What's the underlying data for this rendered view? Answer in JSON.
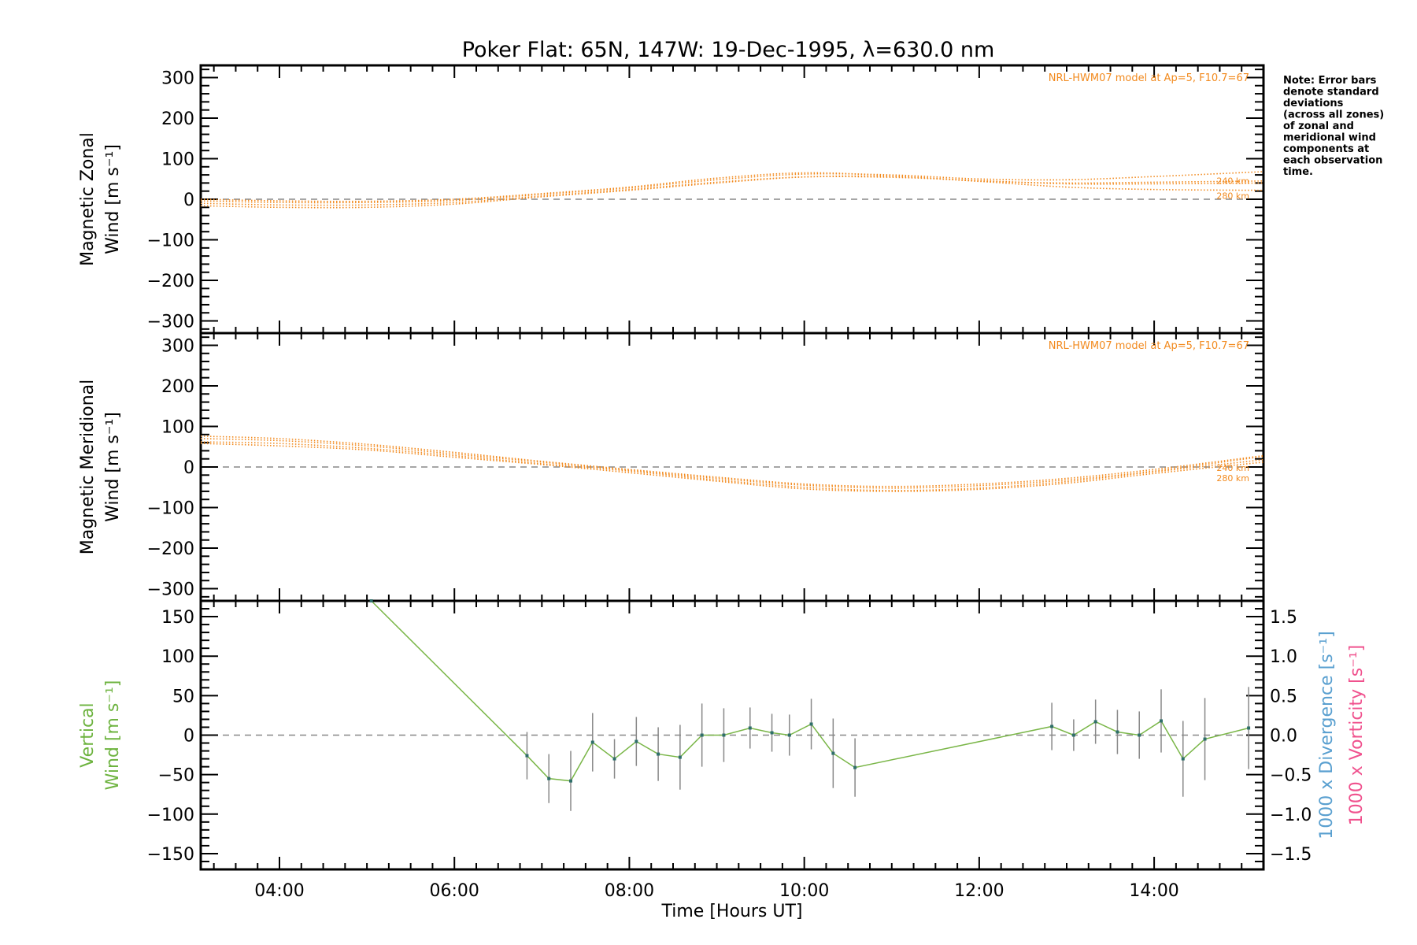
{
  "title": "Poker Flat: 65N, 147W: 19-Dec-1995, λ=630.0 nm",
  "note_lines": [
    "Note: Error bars",
    "denote standard",
    "deviations",
    "(across all zones)",
    "of zonal and",
    "meridional wind",
    "components at",
    "each observation",
    "time."
  ],
  "colors": {
    "model": "#f28a1e",
    "vertical": "#6db33f",
    "divergence": "#5aa0d0",
    "vorticity": "#f0528e",
    "points": "#2f6f6a",
    "errorbars": "#888888"
  },
  "chart_data": [
    {
      "type": "line",
      "panel": "zonal",
      "ylabel_line1": "Magnetic Zonal",
      "ylabel_line2": "Wind [m s⁻¹]",
      "ylim": [
        -330,
        330
      ],
      "xlim": [
        3.1,
        15.25
      ],
      "yticks": [
        -300,
        -200,
        -100,
        0,
        100,
        200,
        300
      ],
      "model_label": "NRL-HWM07 model at Ap=5, F10.7=67",
      "series": [
        {
          "name": "240 km",
          "x": [
            3.1,
            4,
            5,
            6,
            7,
            8,
            9,
            10,
            11,
            12,
            13,
            14,
            15.25
          ],
          "values": [
            -10,
            -14,
            -14,
            -8,
            8,
            24,
            42,
            55,
            54,
            46,
            38,
            38,
            40
          ]
        },
        {
          "name": "280 km",
          "x": [
            3.1,
            4,
            5,
            6,
            7,
            8,
            9,
            10,
            11,
            12,
            13,
            14,
            15.25
          ],
          "values": [
            -16,
            -20,
            -20,
            -12,
            6,
            22,
            40,
            55,
            56,
            44,
            30,
            24,
            22
          ]
        },
        {
          "name": "",
          "x": [
            3.1,
            4,
            5,
            6,
            7,
            8,
            9,
            10,
            11,
            12,
            13,
            14,
            15.25
          ],
          "values": [
            -4,
            -8,
            -8,
            -3,
            12,
            28,
            48,
            62,
            60,
            50,
            48,
            56,
            68
          ]
        },
        {
          "name": "",
          "x": [
            3.1,
            4,
            5,
            6,
            7,
            8,
            9,
            10,
            11,
            12,
            13,
            14,
            15.25
          ],
          "values": [
            0,
            -4,
            -5,
            0,
            14,
            30,
            52,
            65,
            58,
            45,
            40,
            42,
            45
          ]
        }
      ]
    },
    {
      "type": "line",
      "panel": "meridional",
      "ylabel_line1": "Magnetic Meridional",
      "ylabel_line2": "Wind [m s⁻¹]",
      "ylim": [
        -330,
        330
      ],
      "xlim": [
        3.1,
        15.25
      ],
      "yticks": [
        -300,
        -200,
        -100,
        0,
        100,
        200,
        300
      ],
      "model_label": "NRL-HWM07 model at Ap=5, F10.7=67",
      "series": [
        {
          "name": "240 km",
          "x": [
            3.1,
            4,
            5,
            6,
            7,
            8,
            9,
            10,
            11,
            12,
            13,
            14,
            15.25
          ],
          "values": [
            70,
            65,
            52,
            32,
            12,
            -8,
            -28,
            -45,
            -52,
            -46,
            -32,
            -10,
            26
          ]
        },
        {
          "name": "280 km",
          "x": [
            3.1,
            4,
            5,
            6,
            7,
            8,
            9,
            10,
            11,
            12,
            13,
            14,
            15.25
          ],
          "values": [
            62,
            58,
            46,
            28,
            8,
            -10,
            -32,
            -50,
            -58,
            -52,
            -36,
            -12,
            18
          ]
        },
        {
          "name": "",
          "x": [
            3.1,
            4,
            5,
            6,
            7,
            8,
            9,
            10,
            11,
            12,
            13,
            14,
            15.25
          ],
          "values": [
            76,
            70,
            56,
            36,
            14,
            -6,
            -25,
            -42,
            -48,
            -42,
            -28,
            -6,
            28
          ]
        },
        {
          "name": "",
          "x": [
            3.1,
            4,
            5,
            6,
            7,
            8,
            9,
            10,
            11,
            12,
            13,
            14,
            15.25
          ],
          "values": [
            58,
            52,
            42,
            24,
            6,
            -14,
            -35,
            -54,
            -60,
            -55,
            -40,
            -16,
            12
          ]
        }
      ]
    },
    {
      "type": "line",
      "panel": "vertical",
      "ylabel_line1": "Vertical",
      "ylabel_line2": "Wind [m s⁻¹]",
      "ylabel_right_div": "1000 x Divergence [s⁻¹]",
      "ylabel_right_vort": "1000 x Vorticity [s⁻¹]",
      "xlabel": "Time [Hours UT]",
      "xticks": [
        "04:00",
        "06:00",
        "08:00",
        "10:00",
        "12:00",
        "14:00"
      ],
      "xtick_values": [
        4,
        6,
        8,
        10,
        12,
        14
      ],
      "ylim": [
        -170,
        170
      ],
      "xlim": [
        3.1,
        15.25
      ],
      "yticks": [
        -150,
        -100,
        -50,
        0,
        50,
        100,
        150
      ],
      "y2lim": [
        -1.7,
        1.7
      ],
      "y2ticks": [
        -1.5,
        -1.0,
        -0.5,
        0.0,
        0.5,
        1.0,
        1.5
      ],
      "y2ticklabels": [
        "-1.5",
        "-1.0",
        "-0.5",
        "0.0",
        "0.5",
        "1.0",
        "1.5"
      ],
      "series": [
        {
          "name": "",
          "x": [
            5.05,
            6.83,
            7.08,
            7.33,
            7.58,
            7.83,
            8.08,
            8.33,
            8.58,
            8.83,
            9.08,
            9.38,
            9.63,
            9.83,
            10.08,
            10.33,
            10.58,
            12.83,
            13.08,
            13.33,
            13.58,
            13.83,
            14.08,
            14.33,
            14.58,
            15.08
          ],
          "values": [
            170,
            -26,
            -55,
            -58,
            -9,
            -30,
            -8,
            -24,
            -28,
            0,
            0,
            9,
            3,
            0,
            14,
            -23,
            -41,
            11,
            0,
            17,
            4,
            0,
            18,
            -30,
            -5,
            9
          ],
          "errors": [
            null,
            30,
            31,
            38,
            37,
            25,
            31,
            34,
            41,
            40,
            34,
            26,
            24,
            26,
            32,
            44,
            37,
            30,
            20,
            28,
            28,
            30,
            40,
            48,
            52,
            52
          ]
        }
      ]
    }
  ]
}
